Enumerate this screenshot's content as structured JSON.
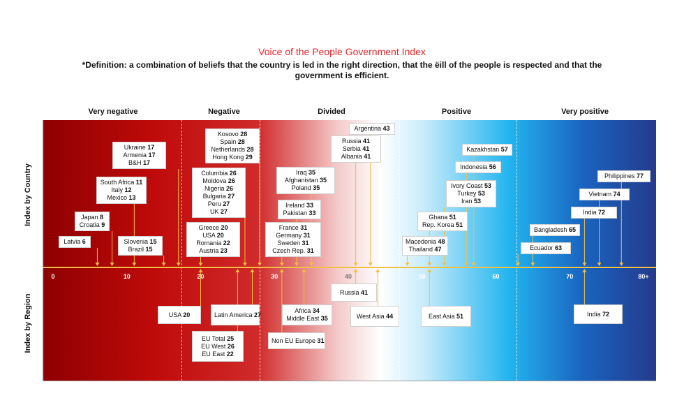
{
  "title": "Voice of the People Government Index",
  "definition": "*Definition: a combination of beliefs that the country is led in the right direction, that the ëill of the people is respected and that the government is efficient.",
  "row_labels": {
    "country": "Index by Country",
    "region": "Index by Region"
  },
  "colors": {
    "title": "#e8242b",
    "axis": "#f0c040",
    "negative": "#a80000",
    "positive": "#243a8c"
  },
  "chart_data": {
    "type": "annotated-scale",
    "xlim": [
      0,
      80
    ],
    "ticks": [
      "0",
      "10",
      "20",
      "30",
      "40",
      "50",
      "60",
      "70",
      "80+"
    ],
    "tick_values": [
      0,
      10,
      20,
      30,
      40,
      50,
      60,
      70,
      80
    ],
    "categories": [
      {
        "label": "Very negative",
        "range": [
          0,
          20
        ]
      },
      {
        "label": "Negative",
        "range": [
          20,
          30
        ]
      },
      {
        "label": "Divided",
        "range": [
          30,
          50
        ]
      },
      {
        "label": "Positive",
        "range": [
          50,
          60
        ]
      },
      {
        "label": "Very positive",
        "range": [
          60,
          80
        ]
      }
    ],
    "country_groups": [
      {
        "items": [
          {
            "name": "Latvia",
            "value": 6
          }
        ]
      },
      {
        "items": [
          {
            "name": "Japan",
            "value": 8
          },
          {
            "name": "Croatia",
            "value": 9
          }
        ]
      },
      {
        "items": [
          {
            "name": "South Africa",
            "value": 11
          },
          {
            "name": "Italy",
            "value": 12
          },
          {
            "name": "Mexico",
            "value": 13
          }
        ]
      },
      {
        "items": [
          {
            "name": "Slovenia",
            "value": 15
          },
          {
            "name": "Brazil",
            "value": 15
          }
        ]
      },
      {
        "items": [
          {
            "name": "Ukraine",
            "value": 17
          },
          {
            "name": "Armenia",
            "value": 17
          },
          {
            "name": "B&H",
            "value": 17
          }
        ]
      },
      {
        "items": [
          {
            "name": "Greece",
            "value": 20
          },
          {
            "name": "USA",
            "value": 20
          },
          {
            "name": "Romania",
            "value": 22
          },
          {
            "name": "Austria",
            "value": 23
          }
        ]
      },
      {
        "items": [
          {
            "name": "Columbia",
            "value": 26
          },
          {
            "name": "Moldova",
            "value": 26
          },
          {
            "name": "Nigeria",
            "value": 26
          },
          {
            "name": "Bulgaria",
            "value": 27
          },
          {
            "name": "Peru",
            "value": 27
          },
          {
            "name": "UK",
            "value": 27
          }
        ]
      },
      {
        "items": [
          {
            "name": "Kosovo",
            "value": 28
          },
          {
            "name": "Spain",
            "value": 28
          },
          {
            "name": "Netherlands",
            "value": 28
          },
          {
            "name": "Hong Kong",
            "value": 29
          }
        ]
      },
      {
        "items": [
          {
            "name": "France",
            "value": 31
          },
          {
            "name": "Germany",
            "value": 31
          },
          {
            "name": "Sweden",
            "value": 31
          },
          {
            "name": "Czech Rep.",
            "value": 31
          }
        ]
      },
      {
        "items": [
          {
            "name": "Ireland",
            "value": 33
          },
          {
            "name": "Pakistan",
            "value": 33
          }
        ]
      },
      {
        "items": [
          {
            "name": "Iraq",
            "value": 35
          },
          {
            "name": "Afghanistan",
            "value": 35
          },
          {
            "name": "Poland",
            "value": 35
          }
        ]
      },
      {
        "items": [
          {
            "name": "Russia",
            "value": 41
          },
          {
            "name": "Serbia",
            "value": 41
          },
          {
            "name": "Albania",
            "value": 41
          }
        ]
      },
      {
        "items": [
          {
            "name": "Argentina",
            "value": 43
          }
        ]
      },
      {
        "items": [
          {
            "name": "Macedonia",
            "value": 48
          },
          {
            "name": "Thailand",
            "value": 47
          }
        ]
      },
      {
        "items": [
          {
            "name": "Ghana",
            "value": 51
          },
          {
            "name": "Rep. Korea",
            "value": 51
          }
        ]
      },
      {
        "items": [
          {
            "name": "Ivory Coast",
            "value": 53
          },
          {
            "name": "Turkey",
            "value": 53
          },
          {
            "name": "Iran",
            "value": 53
          }
        ]
      },
      {
        "items": [
          {
            "name": "Indonesia",
            "value": 56
          }
        ]
      },
      {
        "items": [
          {
            "name": "Kazakhstan",
            "value": 57
          }
        ]
      },
      {
        "items": [
          {
            "name": "Ecuador",
            "value": 63
          }
        ]
      },
      {
        "items": [
          {
            "name": "Bangladesh",
            "value": 65
          }
        ]
      },
      {
        "items": [
          {
            "name": "India",
            "value": 72
          }
        ]
      },
      {
        "items": [
          {
            "name": "Vietnam",
            "value": 74
          }
        ]
      },
      {
        "items": [
          {
            "name": "Philippines",
            "value": 77
          }
        ]
      }
    ],
    "region_groups": [
      {
        "items": [
          {
            "name": "USA",
            "value": 20
          }
        ]
      },
      {
        "items": [
          {
            "name": "Latin America",
            "value": 27
          }
        ]
      },
      {
        "items": [
          {
            "name": "EU Total",
            "value": 25
          },
          {
            "name": "EU West",
            "value": 26
          },
          {
            "name": "EU East",
            "value": 22
          }
        ]
      },
      {
        "items": [
          {
            "name": "Non EU Europe",
            "value": 31
          }
        ]
      },
      {
        "items": [
          {
            "name": "Africa",
            "value": 34
          },
          {
            "name": "Middle East",
            "value": 35
          }
        ]
      },
      {
        "items": [
          {
            "name": "Russia",
            "value": 41
          }
        ]
      },
      {
        "items": [
          {
            "name": "West Asia",
            "value": 44
          }
        ]
      },
      {
        "items": [
          {
            "name": "East Asia",
            "value": 51
          }
        ]
      },
      {
        "items": [
          {
            "name": "India",
            "value": 72
          }
        ]
      }
    ]
  }
}
